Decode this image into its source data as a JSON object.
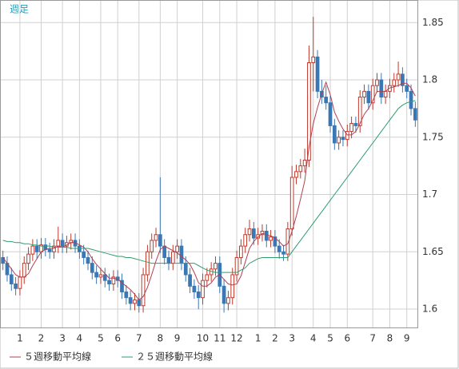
{
  "chart_data": {
    "type": "candlestick",
    "title": "週足",
    "categories": [
      null,
      null,
      null,
      null,
      "1",
      null,
      null,
      null,
      null,
      "2",
      null,
      null,
      null,
      null,
      "3",
      null,
      null,
      null,
      "4",
      null,
      null,
      null,
      null,
      "5",
      null,
      null,
      null,
      "6",
      null,
      null,
      null,
      null,
      "7",
      null,
      null,
      null,
      null,
      "8",
      null,
      null,
      null,
      "9",
      null,
      null,
      null,
      null,
      null,
      "10",
      null,
      null,
      null,
      "11",
      null,
      null,
      null,
      "12",
      null,
      null,
      null,
      null,
      "1",
      null,
      null,
      null,
      "2",
      null,
      null,
      null,
      "3",
      null,
      null,
      null,
      null,
      "4",
      null,
      null,
      null,
      "5",
      null,
      null,
      null,
      "6",
      null,
      null,
      null,
      null,
      null,
      "7",
      null,
      null,
      null,
      "8",
      null,
      null,
      null,
      "9",
      null,
      null
    ],
    "ohlc": [
      [
        1.645,
        1.651,
        1.634,
        1.64
      ],
      [
        1.64,
        1.646,
        1.624,
        1.63
      ],
      [
        1.63,
        1.636,
        1.616,
        1.622
      ],
      [
        1.622,
        1.628,
        1.612,
        1.618
      ],
      [
        1.618,
        1.634,
        1.612,
        1.628
      ],
      [
        1.628,
        1.646,
        1.622,
        1.64
      ],
      [
        1.64,
        1.654,
        1.634,
        1.648
      ],
      [
        1.648,
        1.661,
        1.642,
        1.655
      ],
      [
        1.655,
        1.661,
        1.644,
        1.65
      ],
      [
        1.65,
        1.662,
        1.644,
        1.656
      ],
      [
        1.656,
        1.662,
        1.646,
        1.652
      ],
      [
        1.652,
        1.658,
        1.644,
        1.65
      ],
      [
        1.65,
        1.661,
        1.644,
        1.655
      ],
      [
        1.655,
        1.672,
        1.649,
        1.66
      ],
      [
        1.66,
        1.666,
        1.649,
        1.655
      ],
      [
        1.655,
        1.664,
        1.649,
        1.658
      ],
      [
        1.658,
        1.666,
        1.652,
        1.66
      ],
      [
        1.66,
        1.666,
        1.649,
        1.655
      ],
      [
        1.655,
        1.661,
        1.644,
        1.65
      ],
      [
        1.65,
        1.656,
        1.639,
        1.645
      ],
      [
        1.645,
        1.651,
        1.634,
        1.64
      ],
      [
        1.64,
        1.646,
        1.626,
        1.632
      ],
      [
        1.632,
        1.638,
        1.622,
        1.628
      ],
      [
        1.628,
        1.636,
        1.622,
        1.63
      ],
      [
        1.63,
        1.636,
        1.619,
        1.625
      ],
      [
        1.625,
        1.631,
        1.616,
        1.622
      ],
      [
        1.622,
        1.634,
        1.616,
        1.628
      ],
      [
        1.628,
        1.634,
        1.619,
        1.625
      ],
      [
        1.625,
        1.631,
        1.609,
        1.615
      ],
      [
        1.615,
        1.621,
        1.604,
        1.61
      ],
      [
        1.61,
        1.616,
        1.599,
        1.605
      ],
      [
        1.605,
        1.614,
        1.599,
        1.608
      ],
      [
        1.608,
        1.614,
        1.597,
        1.603
      ],
      [
        1.603,
        1.636,
        1.597,
        1.63
      ],
      [
        1.63,
        1.656,
        1.624,
        1.65
      ],
      [
        1.65,
        1.666,
        1.644,
        1.66
      ],
      [
        1.66,
        1.671,
        1.654,
        1.665
      ],
      [
        1.665,
        1.715,
        1.649,
        1.655
      ],
      [
        1.655,
        1.661,
        1.639,
        1.645
      ],
      [
        1.645,
        1.651,
        1.634,
        1.64
      ],
      [
        1.64,
        1.656,
        1.634,
        1.65
      ],
      [
        1.65,
        1.661,
        1.644,
        1.655
      ],
      [
        1.655,
        1.661,
        1.634,
        1.64
      ],
      [
        1.64,
        1.646,
        1.624,
        1.63
      ],
      [
        1.63,
        1.636,
        1.614,
        1.62
      ],
      [
        1.62,
        1.626,
        1.609,
        1.615
      ],
      [
        1.615,
        1.621,
        1.6,
        1.61
      ],
      [
        1.61,
        1.631,
        1.604,
        1.625
      ],
      [
        1.625,
        1.636,
        1.619,
        1.63
      ],
      [
        1.63,
        1.641,
        1.624,
        1.635
      ],
      [
        1.635,
        1.646,
        1.629,
        1.64
      ],
      [
        1.64,
        1.646,
        1.614,
        1.62
      ],
      [
        1.62,
        1.626,
        1.597,
        1.605
      ],
      [
        1.605,
        1.616,
        1.599,
        1.61
      ],
      [
        1.61,
        1.636,
        1.604,
        1.63
      ],
      [
        1.63,
        1.651,
        1.624,
        1.645
      ],
      [
        1.645,
        1.661,
        1.639,
        1.655
      ],
      [
        1.655,
        1.671,
        1.649,
        1.665
      ],
      [
        1.665,
        1.678,
        1.659,
        1.67
      ],
      [
        1.67,
        1.676,
        1.656,
        1.662
      ],
      [
        1.662,
        1.671,
        1.656,
        1.665
      ],
      [
        1.665,
        1.674,
        1.659,
        1.668
      ],
      [
        1.668,
        1.674,
        1.654,
        1.66
      ],
      [
        1.66,
        1.669,
        1.654,
        1.663
      ],
      [
        1.663,
        1.669,
        1.649,
        1.655
      ],
      [
        1.655,
        1.661,
        1.644,
        1.65
      ],
      [
        1.65,
        1.656,
        1.642,
        1.648
      ],
      [
        1.648,
        1.676,
        1.642,
        1.67
      ],
      [
        1.67,
        1.725,
        1.664,
        1.715
      ],
      [
        1.715,
        1.726,
        1.709,
        1.72
      ],
      [
        1.72,
        1.731,
        1.714,
        1.725
      ],
      [
        1.725,
        1.74,
        1.719,
        1.73
      ],
      [
        1.73,
        1.83,
        1.724,
        1.815
      ],
      [
        1.815,
        1.855,
        1.79,
        1.82
      ],
      [
        1.82,
        1.826,
        1.784,
        1.79
      ],
      [
        1.79,
        1.8,
        1.779,
        1.785
      ],
      [
        1.785,
        1.795,
        1.774,
        1.78
      ],
      [
        1.78,
        1.786,
        1.754,
        1.76
      ],
      [
        1.76,
        1.766,
        1.739,
        1.745
      ],
      [
        1.745,
        1.756,
        1.739,
        1.75
      ],
      [
        1.75,
        1.756,
        1.742,
        1.748
      ],
      [
        1.748,
        1.761,
        1.742,
        1.755
      ],
      [
        1.755,
        1.768,
        1.749,
        1.762
      ],
      [
        1.762,
        1.768,
        1.754,
        1.76
      ],
      [
        1.76,
        1.791,
        1.754,
        1.785
      ],
      [
        1.785,
        1.796,
        1.779,
        1.79
      ],
      [
        1.79,
        1.796,
        1.774,
        1.78
      ],
      [
        1.78,
        1.801,
        1.774,
        1.795
      ],
      [
        1.795,
        1.806,
        1.789,
        1.8
      ],
      [
        1.8,
        1.806,
        1.779,
        1.785
      ],
      [
        1.785,
        1.796,
        1.779,
        1.79
      ],
      [
        1.79,
        1.801,
        1.784,
        1.795
      ],
      [
        1.795,
        1.806,
        1.789,
        1.8
      ],
      [
        1.8,
        1.816,
        1.794,
        1.805
      ],
      [
        1.805,
        1.811,
        1.789,
        1.795
      ],
      [
        1.795,
        1.801,
        1.784,
        1.79
      ],
      [
        1.79,
        1.796,
        1.769,
        1.775
      ],
      [
        1.775,
        1.781,
        1.759,
        1.765
      ]
    ],
    "up_color": "#c0392b",
    "down_color": "#3a78b5",
    "series": [
      {
        "name": "５週移動平均線",
        "color": "#b04050",
        "values": [
          1.645,
          1.64,
          1.635,
          1.63,
          1.628,
          1.628,
          1.631,
          1.638,
          1.644,
          1.65,
          1.652,
          1.653,
          1.653,
          1.655,
          1.654,
          1.656,
          1.658,
          1.658,
          1.656,
          1.654,
          1.65,
          1.644,
          1.639,
          1.635,
          1.631,
          1.627,
          1.627,
          1.626,
          1.623,
          1.62,
          1.617,
          1.613,
          1.608,
          1.611,
          1.619,
          1.63,
          1.642,
          1.652,
          1.655,
          1.653,
          1.651,
          1.649,
          1.646,
          1.643,
          1.639,
          1.632,
          1.623,
          1.62,
          1.62,
          1.623,
          1.628,
          1.63,
          1.626,
          1.622,
          1.621,
          1.622,
          1.629,
          1.641,
          1.653,
          1.659,
          1.663,
          1.666,
          1.665,
          1.664,
          1.662,
          1.659,
          1.655,
          1.657,
          1.668,
          1.681,
          1.696,
          1.712,
          1.741,
          1.762,
          1.776,
          1.788,
          1.798,
          1.787,
          1.772,
          1.764,
          1.757,
          1.752,
          1.752,
          1.755,
          1.762,
          1.77,
          1.775,
          1.782,
          1.79,
          1.79,
          1.79,
          1.793,
          1.794,
          1.795,
          1.797,
          1.797,
          1.793,
          1.786
        ]
      },
      {
        "name": "２５週移動平均線",
        "color": "#2e9e6e",
        "values": [
          1.66,
          1.659,
          1.659,
          1.658,
          1.658,
          1.657,
          1.657,
          1.656,
          1.656,
          1.655,
          1.655,
          1.655,
          1.654,
          1.654,
          1.654,
          1.654,
          1.653,
          1.653,
          1.653,
          1.653,
          1.653,
          1.652,
          1.651,
          1.65,
          1.649,
          1.648,
          1.647,
          1.646,
          1.646,
          1.645,
          1.645,
          1.644,
          1.643,
          1.642,
          1.641,
          1.64,
          1.64,
          1.64,
          1.64,
          1.64,
          1.64,
          1.64,
          1.64,
          1.64,
          1.64,
          1.64,
          1.638,
          1.636,
          1.634,
          1.633,
          1.632,
          1.632,
          1.632,
          1.632,
          1.632,
          1.632,
          1.634,
          1.636,
          1.64,
          1.642,
          1.644,
          1.645,
          1.645,
          1.645,
          1.645,
          1.645,
          1.645,
          1.645,
          1.65,
          1.655,
          1.66,
          1.665,
          1.67,
          1.675,
          1.68,
          1.685,
          1.69,
          1.695,
          1.7,
          1.705,
          1.71,
          1.715,
          1.72,
          1.725,
          1.73,
          1.735,
          1.74,
          1.745,
          1.75,
          1.755,
          1.76,
          1.765,
          1.77,
          1.775,
          1.778,
          1.78,
          1.781,
          1.782
        ]
      }
    ],
    "ylim": [
      1.584,
      1.869
    ],
    "yticks": [
      1.6,
      1.65,
      1.7,
      1.75,
      1.8,
      1.85
    ],
    "grid": true
  }
}
